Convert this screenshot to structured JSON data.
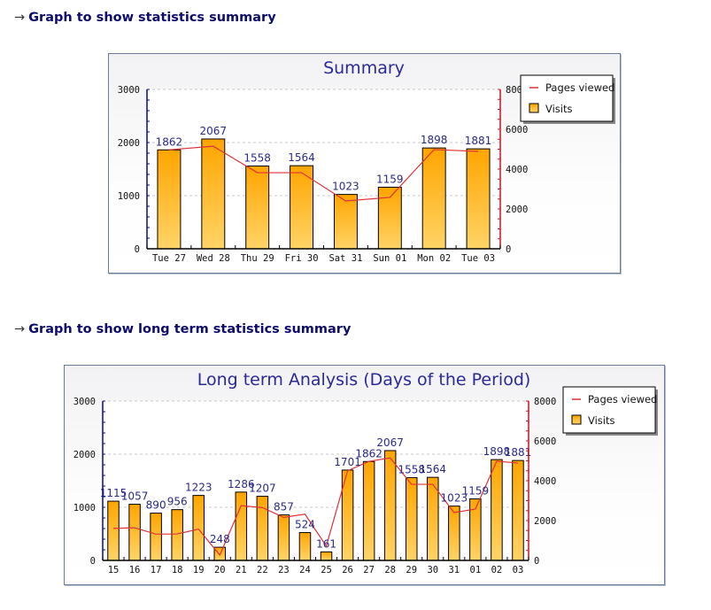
{
  "sections": [
    {
      "arrow": "→",
      "heading": "Graph to show statistics summary"
    },
    {
      "arrow": "→",
      "heading": "Graph to show long term statistics summary"
    }
  ],
  "colors": {
    "heading": "#0d0d6e",
    "title": "#2a2a9a",
    "bar_top": "#ffa500",
    "bar_bottom": "#ffd466",
    "line": "#e0303a",
    "left_axis": "#0a0a8a",
    "right_axis": "#d01020",
    "data_label": "#2a2a8a"
  },
  "chart_data": [
    {
      "type": "bar",
      "title": "Summary",
      "categories": [
        "Tue 27",
        "Wed 28",
        "Thu 29",
        "Fri 30",
        "Sat 31",
        "Sun 01",
        "Mon 02",
        "Tue 03"
      ],
      "series": [
        {
          "name": "Visits",
          "type": "bar",
          "axis": "left",
          "values": [
            1862,
            2067,
            1558,
            1564,
            1023,
            1159,
            1898,
            1881
          ]
        },
        {
          "name": "Pages viewed",
          "type": "line",
          "axis": "right",
          "values": [
            4970,
            5150,
            3820,
            3820,
            2400,
            2580,
            4980,
            4890
          ]
        }
      ],
      "data_labels": [
        "1862",
        "2067",
        "1558",
        "1564",
        "1023",
        "1159",
        "1898",
        "1881"
      ],
      "ylim_left": [
        0,
        3000
      ],
      "ylim_right": [
        0,
        8000
      ],
      "yticks_left": [
        "0",
        "1000",
        "2000",
        "3000"
      ],
      "yticks_right": [
        "0",
        "2000",
        "4000",
        "6000",
        "8000"
      ],
      "xlabel": "",
      "ylabel": "",
      "grid": true,
      "legend": {
        "position": "top-right",
        "entries": [
          "Pages viewed",
          "Visits"
        ]
      }
    },
    {
      "type": "bar",
      "title": "Long term Analysis (Days of the Period)",
      "categories": [
        "15",
        "16",
        "17",
        "18",
        "19",
        "20",
        "21",
        "22",
        "23",
        "24",
        "25",
        "26",
        "27",
        "28",
        "29",
        "30",
        "31",
        "01",
        "02",
        "03"
      ],
      "series": [
        {
          "name": "Visits",
          "type": "bar",
          "axis": "left",
          "values": [
            1115,
            1057,
            890,
            956,
            1223,
            248,
            1286,
            1207,
            857,
            524,
            161,
            1701,
            1862,
            2067,
            1558,
            1564,
            1023,
            1159,
            1898,
            1881
          ]
        },
        {
          "name": "Pages viewed",
          "type": "line",
          "axis": "right",
          "values": [
            1610,
            1640,
            1320,
            1330,
            1570,
            270,
            2750,
            2650,
            2160,
            2320,
            720,
            4500,
            4970,
            5150,
            3820,
            3820,
            2400,
            2580,
            4980,
            4890
          ]
        }
      ],
      "data_labels": [
        "1115",
        "1057",
        "890",
        "956",
        "1223",
        "248",
        "1286",
        "1207",
        "857",
        "524",
        "161",
        "1701",
        "1862",
        "2067",
        "1558",
        "1564",
        "1023",
        "1159",
        "1898",
        "1881"
      ],
      "ylim_left": [
        0,
        3000
      ],
      "ylim_right": [
        0,
        8000
      ],
      "yticks_left": [
        "0",
        "1000",
        "2000",
        "3000"
      ],
      "yticks_right": [
        "0",
        "2000",
        "4000",
        "6000",
        "8000"
      ],
      "xlabel": "",
      "ylabel": "",
      "grid": true,
      "legend": {
        "position": "top-right",
        "entries": [
          "Pages viewed",
          "Visits"
        ]
      }
    }
  ]
}
